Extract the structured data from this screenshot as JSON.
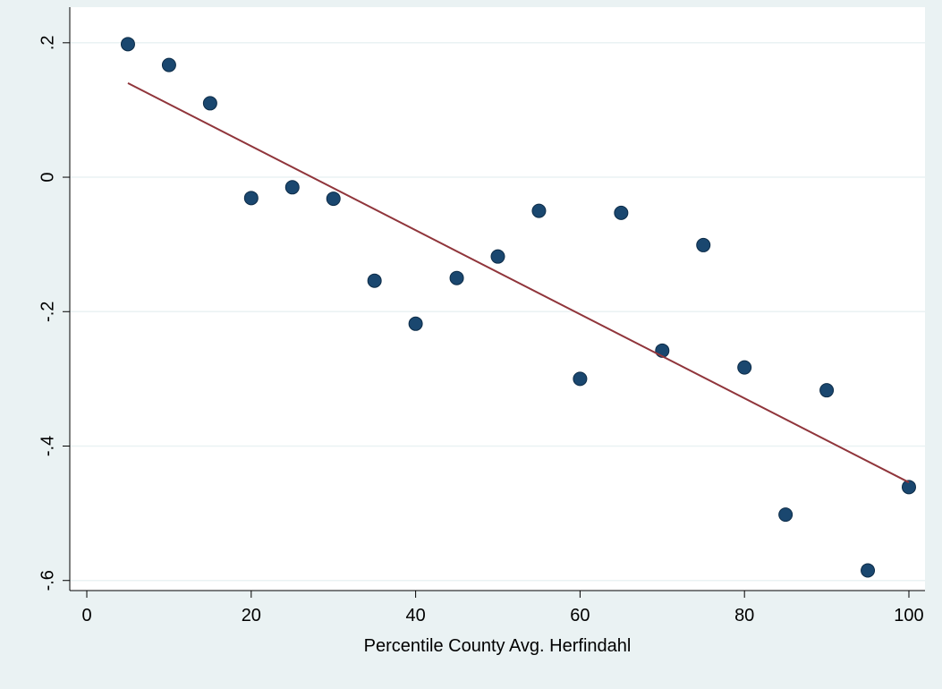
{
  "chart_data": {
    "type": "scatter",
    "x_label": "Percentile County Avg. Herfindahl",
    "xlim": [
      -2.07,
      101.96
    ],
    "ylim": [
      -0.615,
      0.253
    ],
    "xticks": [
      0,
      20,
      40,
      60,
      80,
      100
    ],
    "yticks": [
      {
        "value": 0.2,
        "label": ".2"
      },
      0,
      {
        "value": -0.2,
        "label": "-.2"
      },
      {
        "value": -0.4,
        "label": "-.4"
      },
      {
        "value": -0.6,
        "label": "-.6"
      }
    ],
    "grid": true,
    "series": [
      {
        "type": "scatter",
        "color": "#1a476f",
        "x": [
          5,
          10,
          15,
          20,
          25,
          30,
          35,
          40,
          45,
          50,
          55,
          60,
          65,
          70,
          75,
          80,
          85,
          90,
          95,
          100
        ],
        "values": [
          0.198,
          0.167,
          0.11,
          -0.031,
          -0.015,
          -0.032,
          -0.154,
          -0.218,
          -0.15,
          -0.118,
          -0.05,
          -0.3,
          -0.053,
          -0.258,
          -0.101,
          -0.283,
          -0.502,
          -0.317,
          -0.585,
          -0.461
        ]
      },
      {
        "type": "line",
        "color": "#90353b",
        "x": [
          5,
          100
        ],
        "values": [
          0.14,
          -0.454
        ]
      }
    ]
  }
}
